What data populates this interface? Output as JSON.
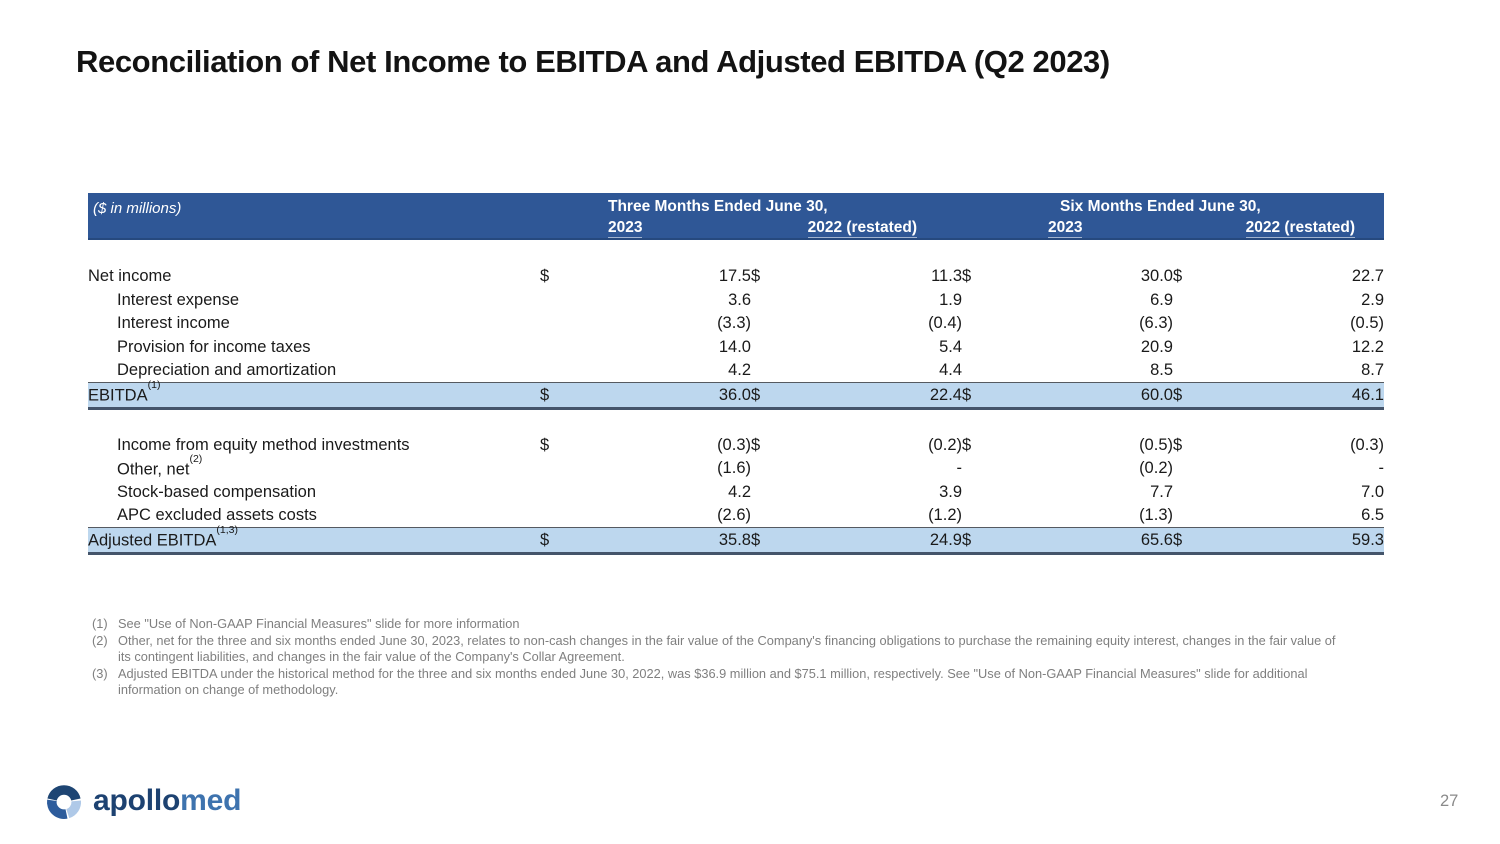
{
  "slide": {
    "title": "Reconciliation of Net Income to EBITDA and Adjusted EBITDA (Q2 2023)",
    "page_number": "27"
  },
  "table": {
    "units_label": "($ in millions)",
    "currency_symbol": "$",
    "column_groups": [
      {
        "title": "Three Months Ended June 30,",
        "years": [
          "2023",
          "2022 (restated)"
        ]
      },
      {
        "title": "Six Months Ended June 30,",
        "years": [
          "2023",
          "2022 (restated)"
        ]
      }
    ],
    "sections": [
      {
        "rows": [
          {
            "label": "Net income",
            "sup": "",
            "indent": false,
            "dollar": true,
            "highlight": false,
            "values": [
              "17.5",
              "11.3",
              "30.0",
              "22.7"
            ]
          },
          {
            "label": "Interest expense",
            "sup": "",
            "indent": true,
            "dollar": false,
            "highlight": false,
            "values": [
              "3.6",
              "1.9",
              "6.9",
              "2.9"
            ]
          },
          {
            "label": "Interest income",
            "sup": "",
            "indent": true,
            "dollar": false,
            "highlight": false,
            "values": [
              "(3.3)",
              "(0.4)",
              "(6.3)",
              "(0.5)"
            ]
          },
          {
            "label": "Provision for income taxes",
            "sup": "",
            "indent": true,
            "dollar": false,
            "highlight": false,
            "values": [
              "14.0",
              "5.4",
              "20.9",
              "12.2"
            ]
          },
          {
            "label": "Depreciation and amortization",
            "sup": "",
            "indent": true,
            "dollar": false,
            "highlight": false,
            "values": [
              "4.2",
              "4.4",
              "8.5",
              "8.7"
            ]
          },
          {
            "label": "EBITDA",
            "sup": "(1)",
            "indent": false,
            "dollar": true,
            "highlight": true,
            "values": [
              "36.0",
              "22.4",
              "60.0",
              "46.1"
            ]
          }
        ]
      },
      {
        "rows": [
          {
            "label": "Income from equity method investments",
            "sup": "",
            "indent": true,
            "dollar": true,
            "highlight": false,
            "values": [
              "(0.3)",
              "(0.2)",
              "(0.5)",
              "(0.3)"
            ]
          },
          {
            "label": "Other, net",
            "sup": "(2)",
            "indent": true,
            "dollar": false,
            "highlight": false,
            "values": [
              "(1.6)",
              "-",
              "(0.2)",
              "-"
            ]
          },
          {
            "label": "Stock-based compensation",
            "sup": "",
            "indent": true,
            "dollar": false,
            "highlight": false,
            "values": [
              "4.2",
              "3.9",
              "7.7",
              "7.0"
            ]
          },
          {
            "label": "APC excluded assets costs",
            "sup": "",
            "indent": true,
            "dollar": false,
            "highlight": false,
            "values": [
              "(2.6)",
              "(1.2)",
              "(1.3)",
              "6.5"
            ]
          },
          {
            "label": "Adjusted EBITDA",
            "sup": "(1,3)",
            "indent": false,
            "dollar": true,
            "highlight": true,
            "values": [
              "35.8",
              "24.9",
              "65.6",
              "59.3"
            ]
          }
        ]
      }
    ]
  },
  "footnotes": [
    {
      "num": "(1)",
      "text": "See \"Use of Non-GAAP Financial Measures\" slide for more information"
    },
    {
      "num": "(2)",
      "text": "Other, net for the three and six months ended June 30, 2023, relates to non-cash changes in the fair value of the Company's financing obligations to purchase the remaining equity interest, changes in the fair value of its contingent liabilities, and changes in the fair value of the Company's Collar Agreement."
    },
    {
      "num": "(3)",
      "text": "Adjusted EBITDA under the historical method for the three and six months ended June 30, 2022, was $36.9 million and $75.1 million, respectively. See \"Use of Non-GAAP Financial Measures\" slide for additional information on change of methodology."
    }
  ],
  "logo": {
    "text_primary": "apollo",
    "text_secondary": "med"
  },
  "colors": {
    "header_bar": "#2F5796",
    "highlight_row": "#BDD7EE",
    "highlight_border_bottom": "#44546A",
    "footnote_gray": "#7F7F7F",
    "logo_dark": "#1E4573",
    "logo_medium": "#2D5C9C",
    "logo_light": "#AFC9E8",
    "logo_text_primary": "#1D4271",
    "logo_text_secondary": "#3E73AE"
  }
}
